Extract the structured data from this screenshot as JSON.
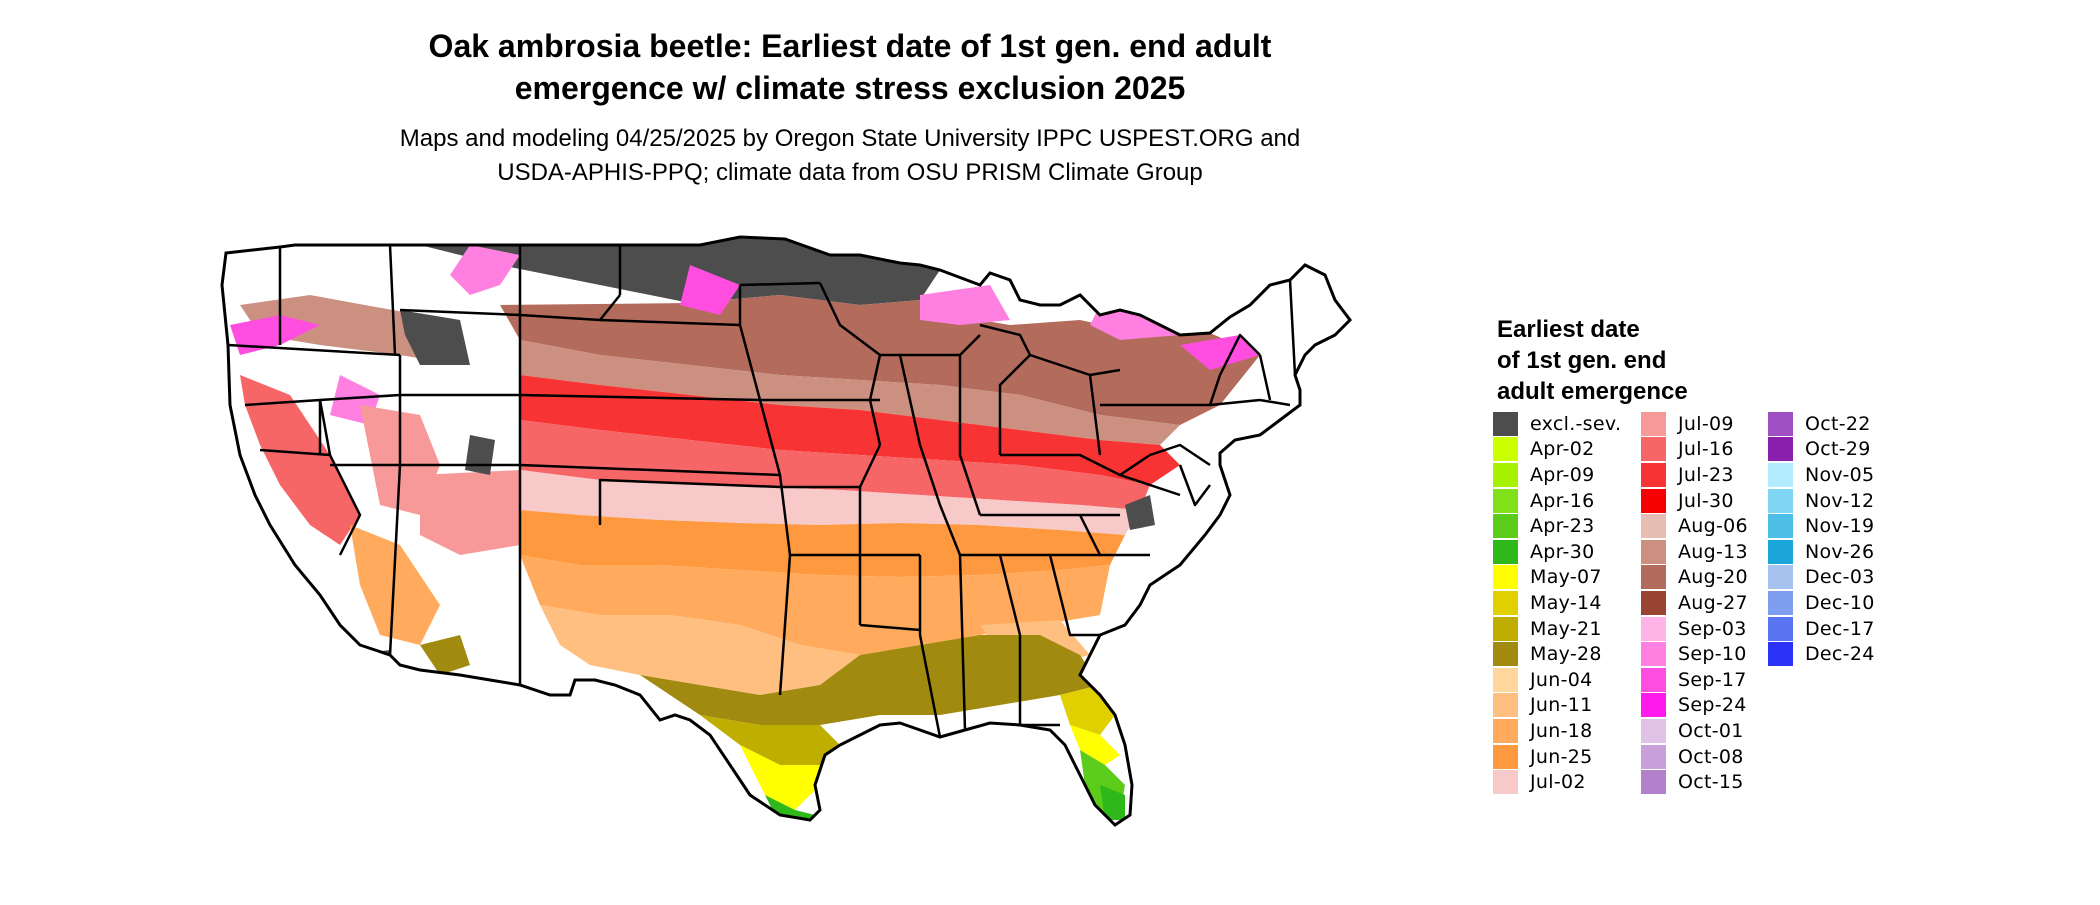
{
  "title": {
    "line1": "Oak ambrosia beetle: Earliest date of 1st gen. end adult",
    "line2": "emergence w/ climate stress exclusion 2025"
  },
  "subtitle": {
    "line1": "Maps and modeling 04/25/2025 by Oregon State University IPPC USPEST.ORG and",
    "line2": "USDA-APHIS-PPQ; climate data from OSU PRISM Climate Group"
  },
  "legend": {
    "title_lines": [
      "Earliest date",
      "of 1st gen. end",
      "adult emergence"
    ],
    "columns": [
      [
        {
          "label": "excl.-sev.",
          "color": "#4d4d4d"
        },
        {
          "label": "Apr-02",
          "color": "#ccff00"
        },
        {
          "label": "Apr-09",
          "color": "#a6f200"
        },
        {
          "label": "Apr-16",
          "color": "#80e01a"
        },
        {
          "label": "Apr-23",
          "color": "#5ccc1a"
        },
        {
          "label": "Apr-30",
          "color": "#2eb81a"
        },
        {
          "label": "May-07",
          "color": "#ffff00"
        },
        {
          "label": "May-14",
          "color": "#e0d000"
        },
        {
          "label": "May-21",
          "color": "#bfae00"
        },
        {
          "label": "May-28",
          "color": "#a08a10"
        },
        {
          "label": "Jun-04",
          "color": "#ffd69c"
        },
        {
          "label": "Jun-11",
          "color": "#ffbf80"
        },
        {
          "label": "Jun-18",
          "color": "#ffaa5c"
        },
        {
          "label": "Jun-25",
          "color": "#ff9940"
        },
        {
          "label": "Jul-02",
          "color": "#f7c9c9"
        }
      ],
      [
        {
          "label": "Jul-09",
          "color": "#f79999"
        },
        {
          "label": "Jul-16",
          "color": "#f76666"
        },
        {
          "label": "Jul-23",
          "color": "#f73333"
        },
        {
          "label": "Jul-30",
          "color": "#f70000"
        },
        {
          "label": "Aug-06",
          "color": "#e6bdb3"
        },
        {
          "label": "Aug-13",
          "color": "#cc9080"
        },
        {
          "label": "Aug-20",
          "color": "#b36b5c"
        },
        {
          "label": "Aug-27",
          "color": "#994433"
        },
        {
          "label": "Sep-03",
          "color": "#ffb3e6"
        },
        {
          "label": "Sep-10",
          "color": "#ff80e0"
        },
        {
          "label": "Sep-17",
          "color": "#ff4de0"
        },
        {
          "label": "Sep-24",
          "color": "#ff1aeb"
        },
        {
          "label": "Oct-01",
          "color": "#e0c2e6"
        },
        {
          "label": "Oct-08",
          "color": "#c9a0d9"
        },
        {
          "label": "Oct-15",
          "color": "#b380cc"
        }
      ],
      [
        {
          "label": "Oct-22",
          "color": "#9e4fc2"
        },
        {
          "label": "Oct-29",
          "color": "#8a1fad"
        },
        {
          "label": "Nov-05",
          "color": "#b3ecff"
        },
        {
          "label": "Nov-12",
          "color": "#80d6f2"
        },
        {
          "label": "Nov-19",
          "color": "#4dbfe6"
        },
        {
          "label": "Nov-26",
          "color": "#1aa6d9"
        },
        {
          "label": "Dec-03",
          "color": "#a6c2ee"
        },
        {
          "label": "Dec-10",
          "color": "#809ef0"
        },
        {
          "label": "Dec-17",
          "color": "#5a73f0"
        },
        {
          "label": "Dec-24",
          "color": "#2a33f7"
        }
      ]
    ]
  }
}
